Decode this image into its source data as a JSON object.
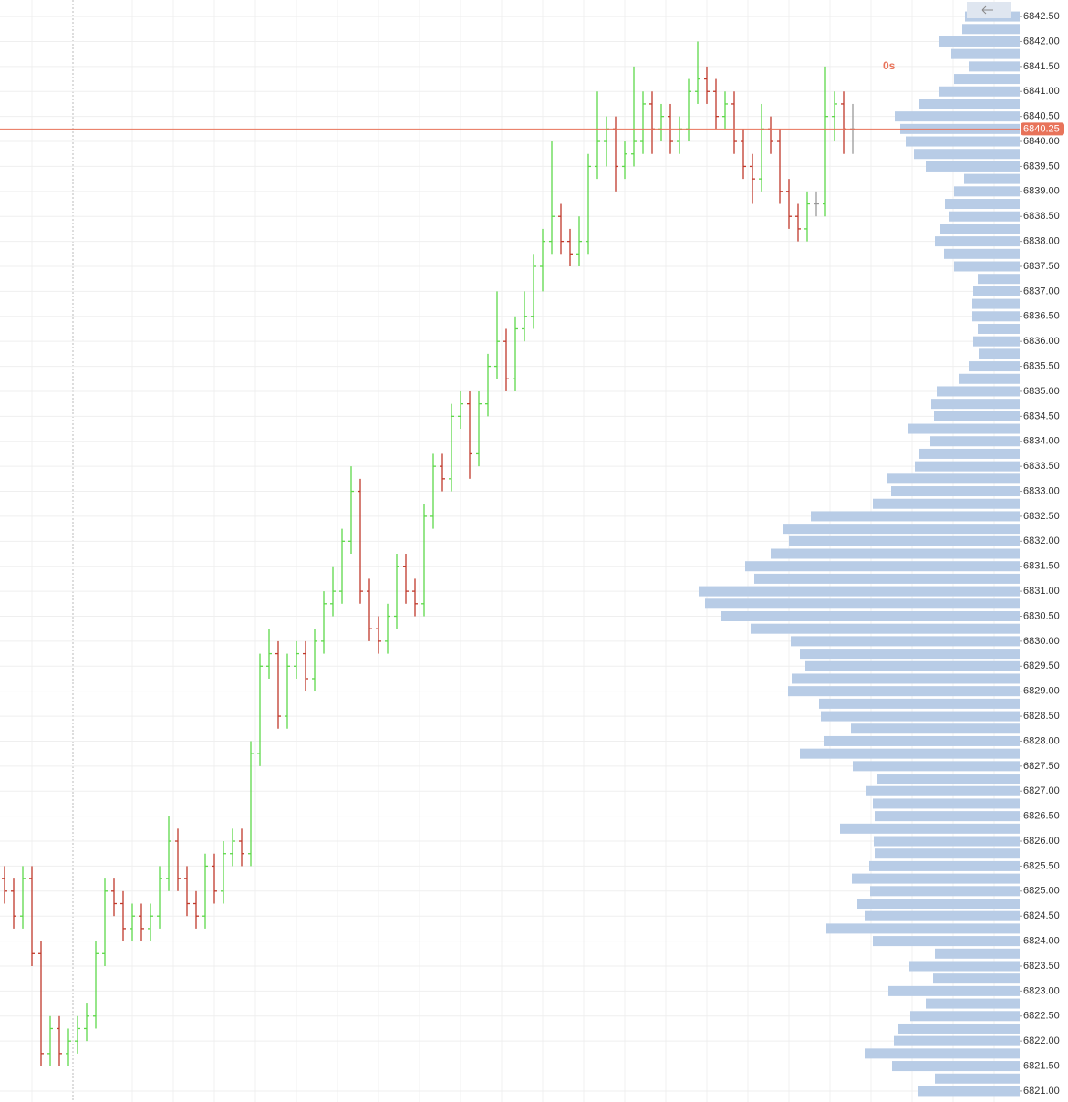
{
  "chart_data": {
    "type": "ohlc",
    "ylim": [
      6820.78,
      6842.83
    ],
    "yticks": [
      {
        "value": 6842.5,
        "label": "6842.50"
      },
      {
        "value": 6842,
        "label": "6842.00"
      },
      {
        "value": 6841.5,
        "label": "6841.50"
      },
      {
        "value": 6841,
        "label": "6841.00"
      },
      {
        "value": 6840.5,
        "label": "6840.50"
      },
      {
        "value": 6840,
        "label": "6840.00"
      },
      {
        "value": 6839.5,
        "label": "6839.50"
      },
      {
        "value": 6839,
        "label": "6839.00"
      },
      {
        "value": 6838.5,
        "label": "6838.50"
      },
      {
        "value": 6838,
        "label": "6838.00"
      },
      {
        "value": 6837.5,
        "label": "6837.50"
      },
      {
        "value": 6837,
        "label": "6837.00"
      },
      {
        "value": 6836.5,
        "label": "6836.50"
      },
      {
        "value": 6836,
        "label": "6836.00"
      },
      {
        "value": 6835.5,
        "label": "6835.50"
      },
      {
        "value": 6835,
        "label": "6835.00"
      },
      {
        "value": 6834.5,
        "label": "6834.50"
      },
      {
        "value": 6834,
        "label": "6834.00"
      },
      {
        "value": 6833.5,
        "label": "6833.50"
      },
      {
        "value": 6833,
        "label": "6833.00"
      },
      {
        "value": 6832.5,
        "label": "6832.50"
      },
      {
        "value": 6832,
        "label": "6832.00"
      },
      {
        "value": 6831.5,
        "label": "6831.50"
      },
      {
        "value": 6831,
        "label": "6831.00"
      },
      {
        "value": 6830.5,
        "label": "6830.50"
      },
      {
        "value": 6830,
        "label": "6830.00"
      },
      {
        "value": 6829.5,
        "label": "6829.50"
      },
      {
        "value": 6829,
        "label": "6829.00"
      },
      {
        "value": 6828.5,
        "label": "6828.50"
      },
      {
        "value": 6828,
        "label": "6828.00"
      },
      {
        "value": 6827.5,
        "label": "6827.50"
      },
      {
        "value": 6827,
        "label": "6827.00"
      },
      {
        "value": 6826.5,
        "label": "6826.50"
      },
      {
        "value": 6826,
        "label": "6826.00"
      },
      {
        "value": 6825.5,
        "label": "6825.50"
      },
      {
        "value": 6825,
        "label": "6825.00"
      },
      {
        "value": 6824.5,
        "label": "6824.50"
      },
      {
        "value": 6824,
        "label": "6824.00"
      },
      {
        "value": 6823.5,
        "label": "6823.50"
      },
      {
        "value": 6823,
        "label": "6823.00"
      },
      {
        "value": 6822.5,
        "label": "6822.50"
      },
      {
        "value": 6822,
        "label": "6822.00"
      },
      {
        "value": 6821.5,
        "label": "6821.50"
      },
      {
        "value": 6821,
        "label": "6821.00"
      }
    ],
    "grid": true,
    "up_color": "#5ed84a",
    "down_color": "#c0392b",
    "flat_color": "#999999",
    "ohlc": [
      [
        6825.25,
        6825.5,
        6824.75,
        6825.0
      ],
      [
        6825.0,
        6825.25,
        6824.25,
        6824.5
      ],
      [
        6824.5,
        6825.5,
        6824.25,
        6825.25
      ],
      [
        6825.25,
        6825.5,
        6823.5,
        6823.75
      ],
      [
        6823.75,
        6824.0,
        6821.5,
        6821.75
      ],
      [
        6821.75,
        6822.5,
        6821.5,
        6822.25
      ],
      [
        6822.25,
        6822.5,
        6821.5,
        6821.75
      ],
      [
        6821.75,
        6822.25,
        6821.5,
        6822.0
      ],
      [
        6822.0,
        6822.5,
        6821.75,
        6822.25
      ],
      [
        6822.25,
        6822.75,
        6822.0,
        6822.5
      ],
      [
        6822.5,
        6824.0,
        6822.25,
        6823.75
      ],
      [
        6823.75,
        6825.25,
        6823.5,
        6825.0
      ],
      [
        6825.0,
        6825.25,
        6824.5,
        6824.75
      ],
      [
        6824.75,
        6825.0,
        6824.0,
        6824.25
      ],
      [
        6824.25,
        6824.75,
        6824.0,
        6824.5
      ],
      [
        6824.5,
        6824.75,
        6824.0,
        6824.25
      ],
      [
        6824.25,
        6824.75,
        6824.0,
        6824.5
      ],
      [
        6824.5,
        6825.5,
        6824.25,
        6825.25
      ],
      [
        6825.25,
        6826.5,
        6825.0,
        6826.0
      ],
      [
        6826.0,
        6826.25,
        6825.0,
        6825.25
      ],
      [
        6825.25,
        6825.5,
        6824.5,
        6824.75
      ],
      [
        6824.75,
        6825.0,
        6824.25,
        6824.5
      ],
      [
        6824.5,
        6825.75,
        6824.25,
        6825.5
      ],
      [
        6825.5,
        6825.75,
        6824.75,
        6825.0
      ],
      [
        6825.0,
        6826.0,
        6824.75,
        6825.75
      ],
      [
        6825.75,
        6826.25,
        6825.5,
        6826.0
      ],
      [
        6826.0,
        6826.25,
        6825.5,
        6825.75
      ],
      [
        6825.75,
        6828.0,
        6825.5,
        6827.75
      ],
      [
        6827.75,
        6829.75,
        6827.5,
        6829.5
      ],
      [
        6829.5,
        6830.25,
        6829.25,
        6829.75
      ],
      [
        6829.75,
        6830.0,
        6828.25,
        6828.5
      ],
      [
        6828.5,
        6829.75,
        6828.25,
        6829.5
      ],
      [
        6829.5,
        6830.0,
        6829.25,
        6829.75
      ],
      [
        6829.75,
        6830.0,
        6829.0,
        6829.25
      ],
      [
        6829.25,
        6830.25,
        6829.0,
        6830.0
      ],
      [
        6830.0,
        6831.0,
        6829.75,
        6830.75
      ],
      [
        6830.75,
        6831.5,
        6830.5,
        6831.0
      ],
      [
        6831.0,
        6832.25,
        6830.75,
        6832.0
      ],
      [
        6832.0,
        6833.5,
        6831.75,
        6833.0
      ],
      [
        6833.0,
        6833.25,
        6830.75,
        6831.0
      ],
      [
        6831.0,
        6831.25,
        6830.0,
        6830.25
      ],
      [
        6830.25,
        6830.5,
        6829.75,
        6830.0
      ],
      [
        6830.0,
        6830.75,
        6829.75,
        6830.5
      ],
      [
        6830.5,
        6831.75,
        6830.25,
        6831.5
      ],
      [
        6831.5,
        6831.75,
        6830.75,
        6831.0
      ],
      [
        6831.0,
        6831.25,
        6830.5,
        6830.75
      ],
      [
        6830.75,
        6832.75,
        6830.5,
        6832.5
      ],
      [
        6832.5,
        6833.75,
        6832.25,
        6833.5
      ],
      [
        6833.5,
        6833.75,
        6833.0,
        6833.25
      ],
      [
        6833.25,
        6834.75,
        6833.0,
        6834.5
      ],
      [
        6834.5,
        6835.0,
        6834.25,
        6834.75
      ],
      [
        6834.75,
        6835.0,
        6833.25,
        6833.75
      ],
      [
        6833.75,
        6835.0,
        6833.5,
        6834.75
      ],
      [
        6834.75,
        6835.75,
        6834.5,
        6835.5
      ],
      [
        6835.5,
        6837.0,
        6835.25,
        6836.0
      ],
      [
        6836.0,
        6836.25,
        6835.0,
        6835.25
      ],
      [
        6835.25,
        6836.5,
        6835.0,
        6836.25
      ],
      [
        6836.25,
        6837.0,
        6836.0,
        6836.5
      ],
      [
        6836.5,
        6837.75,
        6836.25,
        6837.5
      ],
      [
        6837.5,
        6838.25,
        6837.0,
        6838.0
      ],
      [
        6838.0,
        6840.0,
        6837.75,
        6838.5
      ],
      [
        6838.5,
        6838.75,
        6837.75,
        6838.0
      ],
      [
        6838.0,
        6838.25,
        6837.5,
        6837.75
      ],
      [
        6837.75,
        6838.5,
        6837.5,
        6838.0
      ],
      [
        6838.0,
        6839.75,
        6837.75,
        6839.5
      ],
      [
        6839.5,
        6841.0,
        6839.25,
        6840.0
      ],
      [
        6840.0,
        6840.5,
        6839.5,
        6840.25
      ],
      [
        6840.25,
        6840.5,
        6839.0,
        6839.5
      ],
      [
        6839.5,
        6840.0,
        6839.25,
        6839.75
      ],
      [
        6839.75,
        6841.5,
        6839.5,
        6840.0
      ],
      [
        6840.0,
        6841.0,
        6839.75,
        6840.75
      ],
      [
        6840.75,
        6841.0,
        6839.75,
        6840.25
      ],
      [
        6840.25,
        6840.75,
        6840.0,
        6840.5
      ],
      [
        6840.5,
        6840.75,
        6839.75,
        6840.0
      ],
      [
        6840.0,
        6840.5,
        6839.75,
        6840.25
      ],
      [
        6840.25,
        6841.25,
        6840.0,
        6841.0
      ],
      [
        6841.0,
        6842.0,
        6840.75,
        6841.25
      ],
      [
        6841.25,
        6841.5,
        6840.75,
        6841.0
      ],
      [
        6841.0,
        6841.25,
        6840.25,
        6840.5
      ],
      [
        6840.5,
        6841.0,
        6840.25,
        6840.75
      ],
      [
        6840.75,
        6841.0,
        6839.75,
        6840.0
      ],
      [
        6840.0,
        6840.25,
        6839.25,
        6839.5
      ],
      [
        6839.5,
        6839.75,
        6838.75,
        6839.25
      ],
      [
        6839.25,
        6840.75,
        6839.0,
        6840.25
      ],
      [
        6840.25,
        6840.5,
        6839.75,
        6840.0
      ],
      [
        6840.0,
        6840.25,
        6838.75,
        6839.0
      ],
      [
        6839.0,
        6839.25,
        6838.25,
        6838.5
      ],
      [
        6838.5,
        6838.75,
        6838.0,
        6838.25
      ],
      [
        6838.25,
        6839.0,
        6838.0,
        6838.75
      ],
      [
        6838.75,
        6839.0,
        6838.5,
        6838.75
      ],
      [
        6838.75,
        6841.5,
        6838.5,
        6840.5
      ],
      [
        6840.5,
        6841.0,
        6840.0,
        6840.75
      ],
      [
        6840.75,
        6841.0,
        6839.75,
        6840.25
      ],
      [
        6840.25,
        6840.75,
        6839.75,
        6840.25
      ]
    ],
    "profile_color": "#b8cce6",
    "profile_prices": [
      6842.5,
      6842.25,
      6842.0,
      6841.75,
      6841.5,
      6841.25,
      6841.0,
      6840.75,
      6840.5,
      6840.25,
      6840.0,
      6839.75,
      6839.5,
      6839.25,
      6839.0,
      6838.75,
      6838.5,
      6838.25,
      6838.0,
      6837.75,
      6837.5,
      6837.25,
      6837.0,
      6836.75,
      6836.5,
      6836.25,
      6836.0,
      6835.75,
      6835.5,
      6835.25,
      6835.0,
      6834.75,
      6834.5,
      6834.25,
      6834.0,
      6833.75,
      6833.5,
      6833.25,
      6833.0,
      6832.75,
      6832.5,
      6832.25,
      6832.0,
      6831.75,
      6831.5,
      6831.25,
      6831.0,
      6830.75,
      6830.5,
      6830.25,
      6830.0,
      6829.75,
      6829.5,
      6829.25,
      6829.0,
      6828.75,
      6828.5,
      6828.25,
      6828.0,
      6827.75,
      6827.5,
      6827.25,
      6827.0,
      6826.75,
      6826.5,
      6826.25,
      6826.0,
      6825.75,
      6825.5,
      6825.25,
      6825.0,
      6824.75,
      6824.5,
      6824.25,
      6824.0,
      6823.75,
      6823.5,
      6823.25,
      6823.0,
      6822.75,
      6822.5,
      6822.25,
      6822.0,
      6821.75,
      6821.5,
      6821.25,
      6821.0
    ],
    "profile_volumes": [
      60,
      63,
      88,
      75,
      56,
      72,
      88,
      110,
      137,
      131,
      125,
      116,
      103,
      61,
      72,
      82,
      77,
      87,
      93,
      83,
      72,
      46,
      51,
      52,
      52,
      46,
      51,
      45,
      56,
      67,
      91,
      97,
      94,
      122,
      98,
      110,
      115,
      145,
      141,
      161,
      229,
      260,
      253,
      273,
      301,
      291,
      352,
      345,
      327,
      295,
      251,
      241,
      235,
      250,
      254,
      220,
      218,
      185,
      215,
      241,
      183,
      156,
      169,
      161,
      159,
      197,
      160,
      159,
      165,
      184,
      164,
      178,
      170,
      212,
      161,
      93,
      121,
      95,
      144,
      103,
      120,
      133,
      138,
      170,
      140,
      93,
      111
    ],
    "current_price": 6840.25,
    "current_color": "#e8735a",
    "timer": "0s"
  }
}
